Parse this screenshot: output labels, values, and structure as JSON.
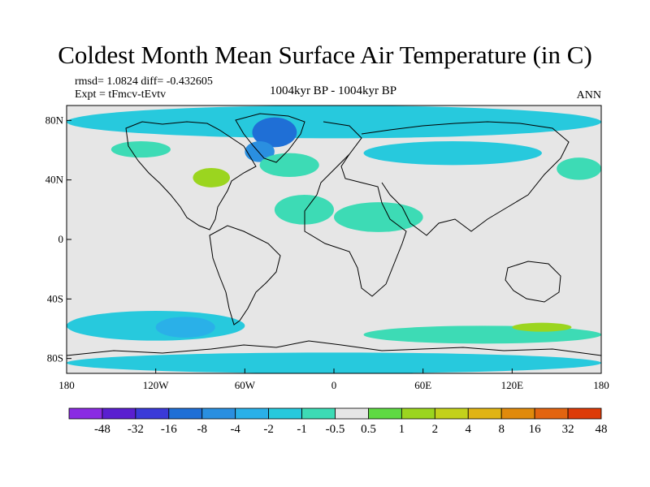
{
  "figure": {
    "title": "Coldest Month Mean Surface Air Temperature (in C)",
    "stats_line1": "rmsd= 1.0824 diff= -0.432605",
    "stats_line2": "Expt = tFmcv-tEvtv",
    "center_label": "1004kyr BP - 1004kyr BP",
    "right_label": "ANN"
  },
  "axes": {
    "lat_labels": [
      "80N",
      "40N",
      "0",
      "40S",
      "80S"
    ],
    "lat_values": [
      80,
      40,
      0,
      -40,
      -80
    ],
    "lon_labels": [
      "180",
      "120W",
      "60W",
      "0",
      "60E",
      "120E",
      "180"
    ],
    "lon_values": [
      -180,
      -120,
      -60,
      0,
      60,
      120,
      180
    ],
    "lat_range": [
      -90,
      90
    ],
    "lon_range": [
      -180,
      180
    ]
  },
  "colorbar": {
    "labels": [
      "-48",
      "-32",
      "-16",
      "-8",
      "-4",
      "-2",
      "-1",
      "-0.5",
      "0.5",
      "1",
      "2",
      "4",
      "8",
      "16",
      "32",
      "48"
    ],
    "colors": [
      "#8a2be2",
      "#5a1fd0",
      "#3a3ad8",
      "#1f6fd6",
      "#2a8fe0",
      "#2ab0e8",
      "#27c9dd",
      "#3ddbb5",
      "#e6e6e6",
      "#5fd943",
      "#9bd51f",
      "#c3d11b",
      "#e0b414",
      "#e08a0c",
      "#e26410",
      "#dd3b08"
    ]
  },
  "map": {
    "background_color": "#e6e6e6",
    "anomaly_regions": [
      {
        "name": "arctic-ocean",
        "color": "#27c9dd",
        "lon": [
          -180,
          180
        ],
        "lat": [
          68,
          90
        ]
      },
      {
        "name": "greenland",
        "color": "#1f6fd6",
        "lon": [
          -55,
          -25
        ],
        "lat": [
          62,
          82
        ]
      },
      {
        "name": "labrador-sea",
        "color": "#2a8fe0",
        "lon": [
          -60,
          -40
        ],
        "lat": [
          52,
          66
        ]
      },
      {
        "name": "north-atlantic",
        "color": "#3ddbb5",
        "lon": [
          -50,
          -10
        ],
        "lat": [
          42,
          58
        ]
      },
      {
        "name": "eastern-north-america",
        "color": "#9bd51f",
        "lon": [
          -95,
          -70
        ],
        "lat": [
          35,
          48
        ]
      },
      {
        "name": "north-america-west",
        "color": "#3ddbb5",
        "lon": [
          -150,
          -110
        ],
        "lat": [
          55,
          66
        ]
      },
      {
        "name": "eurasia-north",
        "color": "#27c9dd",
        "lon": [
          20,
          140
        ],
        "lat": [
          50,
          66
        ]
      },
      {
        "name": "north-pacific",
        "color": "#3ddbb5",
        "lon": [
          150,
          180
        ],
        "lat": [
          40,
          55
        ]
      },
      {
        "name": "tropical-atlantic",
        "color": "#3ddbb5",
        "lon": [
          -40,
          0
        ],
        "lat": [
          10,
          30
        ]
      },
      {
        "name": "north-africa",
        "color": "#3ddbb5",
        "lon": [
          0,
          60
        ],
        "lat": [
          5,
          25
        ]
      },
      {
        "name": "southern-ocean-west",
        "color": "#27c9dd",
        "lon": [
          -180,
          -60
        ],
        "lat": [
          -68,
          -48
        ]
      },
      {
        "name": "southern-ocean-central",
        "color": "#2ab0e8",
        "lon": [
          -120,
          -80
        ],
        "lat": [
          -66,
          -52
        ]
      },
      {
        "name": "southern-ocean-east",
        "color": "#3ddbb5",
        "lon": [
          20,
          180
        ],
        "lat": [
          -70,
          -58
        ]
      },
      {
        "name": "antarctica-coast",
        "color": "#27c9dd",
        "lon": [
          -180,
          180
        ],
        "lat": [
          -90,
          -76
        ]
      },
      {
        "name": "southeast-pacific",
        "color": "#9bd51f",
        "lon": [
          120,
          160
        ],
        "lat": [
          -62,
          -56
        ]
      }
    ]
  }
}
